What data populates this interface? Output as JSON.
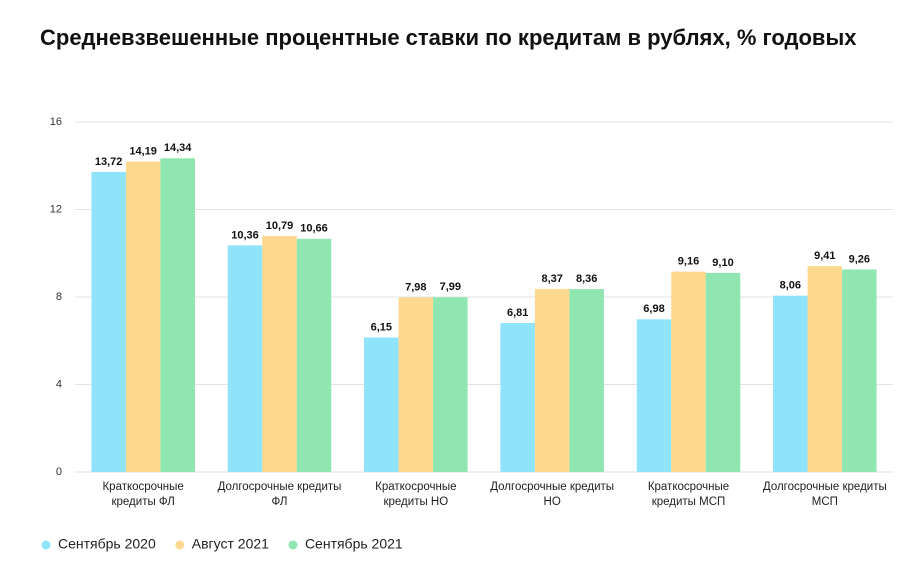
{
  "chart_data": {
    "type": "bar",
    "title": "Средневзвешенные процентные ставки по кредитам в рублях, % годовых",
    "categories": [
      "Краткосрочные\nкредиты ФЛ",
      "Долгосрочные кредиты\nФЛ",
      "Краткосрочные\nкредиты НО",
      "Долгосрочные кредиты\nНО",
      "Краткосрочные\nкредиты МСП",
      "Долгосрочные кредиты\nМСП"
    ],
    "series": [
      {
        "name": "Сентябрь 2020",
        "color": "#8fe3fb",
        "values": [
          13.72,
          10.36,
          6.15,
          6.81,
          6.98,
          8.06
        ],
        "value_labels": [
          "13,72",
          "10,36",
          "6,15",
          "6,81",
          "6,98",
          "8,06"
        ]
      },
      {
        "name": "Август 2021",
        "color": "#fcd98f",
        "values": [
          14.19,
          10.79,
          7.98,
          8.37,
          9.16,
          9.41
        ],
        "value_labels": [
          "14,19",
          "10,79",
          "7,98",
          "8,37",
          "9,16",
          "9,41"
        ]
      },
      {
        "name": "Сентябрь 2021",
        "color": "#90e6b0",
        "values": [
          14.34,
          10.66,
          7.99,
          8.36,
          9.1,
          9.26
        ],
        "value_labels": [
          "14,34",
          "10,66",
          "7,99",
          "8,36",
          "9,10",
          "9,26"
        ]
      }
    ],
    "ylim": [
      0,
      16
    ],
    "yticks": [
      0,
      4,
      8,
      12,
      16
    ],
    "grid": true,
    "legend": "bottom"
  }
}
